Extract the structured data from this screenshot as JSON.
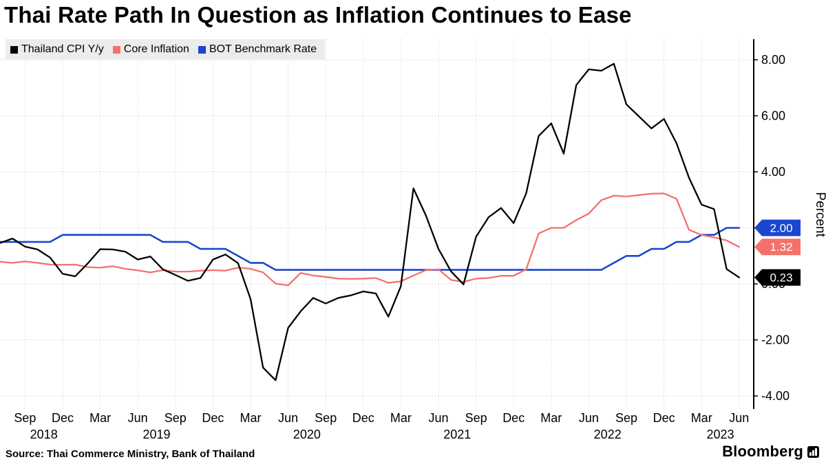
{
  "title": "Thai Rate Path In Question as Inflation Continues to Ease",
  "footer": {
    "source": "Source: Thai Commerce Ministry, Bank of Thailand",
    "brand": "Bloomberg"
  },
  "colors": {
    "cpi": "#000000",
    "core": "#f4716b",
    "rate": "#1b46cf",
    "legend_bg": "#ececec",
    "grid": "#c6c6c6"
  },
  "chart_data": {
    "type": "line",
    "title": "Thai Rate Path In Question as Inflation Continues to Ease",
    "ylabel": "Percent",
    "frequency": "monthly",
    "x_start_month": "Jul 2018",
    "x_end_month": "Jun 2023",
    "ylim": [
      -4.6,
      8.6
    ],
    "grid": "dotted",
    "legend_position": "top-left",
    "y_axis": {
      "ticks": [
        {
          "value": -4,
          "label": "-4.00"
        },
        {
          "value": -2,
          "label": "-2.00"
        },
        {
          "value": 0,
          "label": "0.00"
        },
        {
          "value": 2,
          "label": "2.00"
        },
        {
          "value": 4,
          "label": "4.00"
        },
        {
          "value": 6,
          "label": "6.00"
        },
        {
          "value": 8,
          "label": "8.00"
        }
      ]
    },
    "x_axis": {
      "ticks": [
        {
          "label": "Sep",
          "index": 2
        },
        {
          "label": "Dec",
          "index": 5
        },
        {
          "label": "Mar",
          "index": 8
        },
        {
          "label": "Jun",
          "index": 11
        },
        {
          "label": "Sep",
          "index": 14
        },
        {
          "label": "Dec",
          "index": 17
        },
        {
          "label": "Mar",
          "index": 20
        },
        {
          "label": "Jun",
          "index": 23
        },
        {
          "label": "Sep",
          "index": 26
        },
        {
          "label": "Dec",
          "index": 29
        },
        {
          "label": "Mar",
          "index": 32
        },
        {
          "label": "Jun",
          "index": 35
        },
        {
          "label": "Sep",
          "index": 38
        },
        {
          "label": "Dec",
          "index": 41
        },
        {
          "label": "Mar",
          "index": 44
        },
        {
          "label": "Jun",
          "index": 47
        },
        {
          "label": "Sep",
          "index": 50
        },
        {
          "label": "Dec",
          "index": 53
        },
        {
          "label": "Mar",
          "index": 56
        },
        {
          "label": "Jun",
          "index": 59
        }
      ],
      "years": [
        {
          "label": "2018",
          "index": 3.5
        },
        {
          "label": "2019",
          "index": 12.5
        },
        {
          "label": "2020",
          "index": 24.5
        },
        {
          "label": "2021",
          "index": 36.5
        },
        {
          "label": "2022",
          "index": 48.5
        },
        {
          "label": "2023",
          "index": 57.5
        }
      ]
    },
    "series": [
      {
        "name": "Thailand CPI Y/y",
        "color": "#000000",
        "width": 2.3,
        "last_label": "0.23",
        "values": [
          1.46,
          1.62,
          1.33,
          1.23,
          0.94,
          0.36,
          0.27,
          0.73,
          1.24,
          1.23,
          1.15,
          0.87,
          0.98,
          0.52,
          0.32,
          0.11,
          0.21,
          0.87,
          1.05,
          0.74,
          -0.54,
          -2.99,
          -3.44,
          -1.57,
          -0.98,
          -0.5,
          -0.7,
          -0.5,
          -0.41,
          -0.27,
          -0.34,
          -1.17,
          -0.08,
          3.41,
          2.44,
          1.25,
          0.45,
          -0.02,
          1.68,
          2.38,
          2.71,
          2.17,
          3.23,
          5.28,
          5.73,
          4.65,
          7.1,
          7.66,
          7.61,
          7.86,
          6.41,
          5.98,
          5.55,
          5.89,
          5.02,
          3.79,
          2.83,
          2.67,
          0.53,
          0.23
        ]
      },
      {
        "name": "Core Inflation",
        "color": "#f4716b",
        "width": 2.3,
        "last_label": "1.32",
        "values": [
          0.79,
          0.75,
          0.8,
          0.75,
          0.69,
          0.68,
          0.69,
          0.6,
          0.58,
          0.63,
          0.54,
          0.48,
          0.41,
          0.49,
          0.44,
          0.44,
          0.47,
          0.49,
          0.47,
          0.58,
          0.54,
          0.41,
          0.01,
          -0.05,
          0.39,
          0.3,
          0.25,
          0.19,
          0.18,
          0.19,
          0.21,
          0.04,
          0.09,
          0.3,
          0.49,
          0.52,
          0.14,
          0.07,
          0.19,
          0.21,
          0.29,
          0.29,
          0.52,
          1.8,
          2.0,
          2.0,
          2.28,
          2.51,
          2.99,
          3.15,
          3.12,
          3.17,
          3.22,
          3.23,
          3.04,
          1.93,
          1.75,
          1.66,
          1.55,
          1.32
        ]
      },
      {
        "name": "BOT Benchmark Rate",
        "color": "#1b46cf",
        "width": 2.6,
        "last_label": "2.00",
        "values": [
          1.5,
          1.5,
          1.5,
          1.5,
          1.5,
          1.75,
          1.75,
          1.75,
          1.75,
          1.75,
          1.75,
          1.75,
          1.75,
          1.5,
          1.5,
          1.5,
          1.25,
          1.25,
          1.25,
          1.0,
          0.75,
          0.75,
          0.5,
          0.5,
          0.5,
          0.5,
          0.5,
          0.5,
          0.5,
          0.5,
          0.5,
          0.5,
          0.5,
          0.5,
          0.5,
          0.5,
          0.5,
          0.5,
          0.5,
          0.5,
          0.5,
          0.5,
          0.5,
          0.5,
          0.5,
          0.5,
          0.5,
          0.5,
          0.5,
          0.75,
          1.0,
          1.0,
          1.25,
          1.25,
          1.5,
          1.5,
          1.75,
          1.75,
          2.0,
          2.0
        ]
      }
    ]
  }
}
